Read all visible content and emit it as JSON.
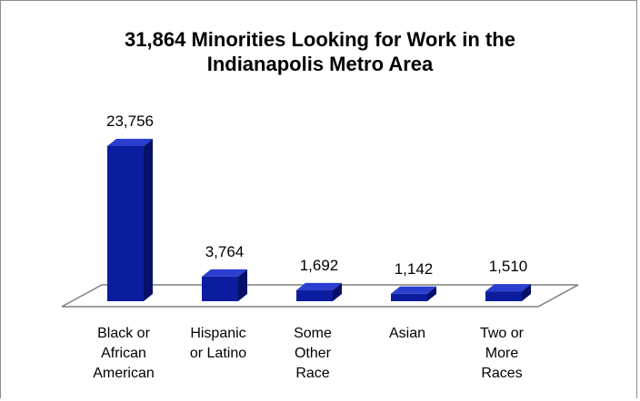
{
  "chart_data": {
    "type": "bar",
    "title": "31,864 Minorities Looking for Work in the\nIndianapolis Metro Area",
    "categories": [
      [
        "Black or",
        "African",
        "American"
      ],
      [
        "Hispanic",
        "or Latino"
      ],
      [
        "Some",
        "Other",
        "Race"
      ],
      [
        "Asian"
      ],
      [
        "Two or",
        "More",
        "Races"
      ]
    ],
    "values": [
      23756,
      3764,
      1692,
      1142,
      1510
    ],
    "value_labels": [
      "23,756",
      "3,764",
      "1,692",
      "1,142",
      "1,510"
    ],
    "ylim": [
      0,
      25000
    ],
    "grid": false,
    "legend": "none",
    "colors": {
      "bar_front": "#0b1c9e",
      "bar_top": "#2a3fd0",
      "bar_side": "#061068",
      "floor_stroke": "#7f7f7f",
      "border": "#8c8c8c"
    }
  }
}
